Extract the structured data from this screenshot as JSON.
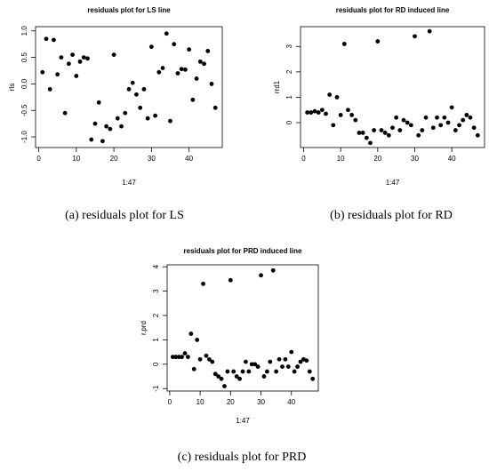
{
  "chart_data": [
    {
      "type": "scatter",
      "title": "residuals plot for LS line",
      "xlabel": "1:47",
      "ylabel": "rls",
      "caption": "(a) residuals plot for LS",
      "color": "#000000",
      "x": [
        1,
        2,
        3,
        4,
        5,
        6,
        7,
        8,
        9,
        10,
        11,
        12,
        13,
        14,
        15,
        16,
        17,
        18,
        19,
        20,
        21,
        22,
        23,
        24,
        25,
        26,
        27,
        28,
        29,
        30,
        31,
        32,
        33,
        34,
        35,
        36,
        37,
        38,
        39,
        40,
        41,
        42,
        43,
        44,
        45,
        46,
        47
      ],
      "y": [
        0.22,
        0.85,
        -0.1,
        0.83,
        0.18,
        0.5,
        -0.55,
        0.38,
        0.55,
        0.15,
        0.42,
        0.5,
        0.48,
        -1.05,
        -0.75,
        -0.35,
        -1.08,
        -0.8,
        -0.85,
        0.55,
        -0.65,
        -0.8,
        -0.55,
        -0.1,
        0.02,
        -0.2,
        -0.45,
        -0.1,
        -0.65,
        0.7,
        -0.6,
        0.22,
        0.3,
        0.95,
        -0.7,
        0.75,
        0.2,
        0.28,
        0.27,
        0.65,
        -0.3,
        0.1,
        0.42,
        0.38,
        0.62,
        0.0,
        -0.45
      ],
      "xlim": [
        -0.84,
        48.84
      ],
      "ylim": [
        -1.2,
        1.08
      ],
      "xticks": [
        0,
        10,
        20,
        30,
        40
      ],
      "yticks": [
        {
          "value": -1,
          "label": "-1.0"
        },
        -0.5,
        {
          "value": 0,
          "label": "0.0"
        },
        0.5,
        {
          "value": 1,
          "label": "1.0"
        }
      ]
    },
    {
      "type": "scatter",
      "title": "residuals plot for RD induced line",
      "xlabel": "1:47",
      "ylabel": "rrd1",
      "caption": "(b) residuals plot for RD",
      "color": "#000000",
      "x": [
        1,
        2,
        3,
        4,
        5,
        6,
        7,
        8,
        9,
        10,
        11,
        12,
        13,
        14,
        15,
        16,
        17,
        18,
        19,
        20,
        21,
        22,
        23,
        24,
        25,
        26,
        27,
        28,
        29,
        30,
        31,
        32,
        33,
        34,
        35,
        36,
        37,
        38,
        39,
        40,
        41,
        42,
        43,
        44,
        45,
        46,
        47
      ],
      "y": [
        0.4,
        0.4,
        0.45,
        0.4,
        0.5,
        0.35,
        1.1,
        -0.1,
        1.0,
        0.3,
        3.1,
        0.5,
        0.3,
        0.1,
        -0.4,
        -0.4,
        -0.6,
        -0.8,
        -0.3,
        3.2,
        -0.3,
        -0.4,
        -0.5,
        -0.2,
        0.2,
        -0.3,
        0.1,
        0.0,
        -0.1,
        3.4,
        -0.5,
        -0.3,
        0.2,
        3.6,
        -0.2,
        0.2,
        -0.1,
        0.2,
        0.0,
        0.6,
        -0.3,
        -0.1,
        0.1,
        0.3,
        0.2,
        -0.2,
        -0.5
      ],
      "xlim": [
        -0.84,
        48.84
      ],
      "ylim": [
        -0.98,
        3.78
      ],
      "xticks": [
        0,
        10,
        20,
        30,
        40
      ],
      "yticks": [
        0,
        1,
        2,
        3
      ]
    },
    {
      "type": "scatter",
      "title": "residuals plot for PRD induced line",
      "xlabel": "1:47",
      "ylabel": "r.prd",
      "caption": "(c) residuals plot for PRD",
      "color": "#000000",
      "x": [
        1,
        2,
        3,
        4,
        5,
        6,
        7,
        8,
        9,
        10,
        11,
        12,
        13,
        14,
        15,
        16,
        17,
        18,
        19,
        20,
        21,
        22,
        23,
        24,
        25,
        26,
        27,
        28,
        29,
        30,
        31,
        32,
        33,
        34,
        35,
        36,
        37,
        38,
        39,
        40,
        41,
        42,
        43,
        44,
        45,
        46,
        47
      ],
      "y": [
        0.3,
        0.3,
        0.3,
        0.3,
        0.45,
        0.3,
        1.25,
        -0.2,
        1.0,
        0.2,
        3.3,
        0.35,
        0.2,
        0.1,
        -0.4,
        -0.5,
        -0.6,
        -0.9,
        -0.3,
        3.45,
        -0.3,
        -0.5,
        -0.6,
        -0.3,
        0.1,
        -0.3,
        0.0,
        0.0,
        -0.1,
        3.65,
        -0.5,
        -0.3,
        0.1,
        3.85,
        -0.3,
        0.2,
        -0.1,
        0.2,
        -0.1,
        0.5,
        -0.3,
        -0.1,
        0.1,
        0.2,
        0.15,
        -0.3,
        -0.6
      ],
      "xlim": [
        -0.84,
        48.84
      ],
      "ylim": [
        -1.1,
        4.08
      ],
      "xticks": [
        0,
        10,
        20,
        30,
        40
      ],
      "yticks": [
        -1,
        0,
        1,
        2,
        3,
        4
      ]
    }
  ]
}
